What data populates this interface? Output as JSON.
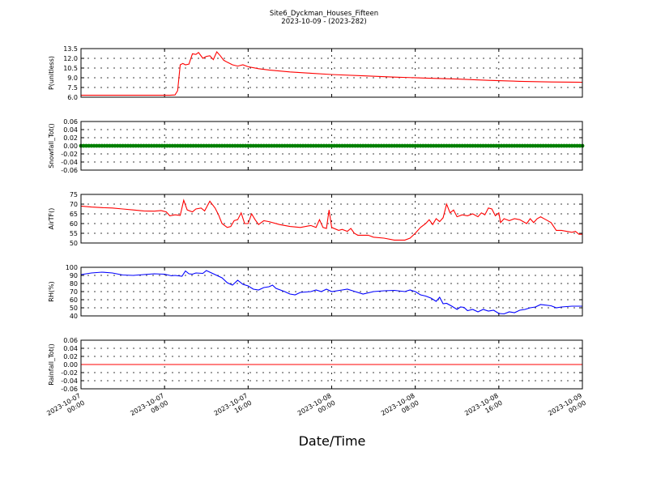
{
  "chart_data": {
    "title": "Site6_Dyckman_Houses_Fifteen",
    "subtitle": "2023-10-09 - (2023-282)",
    "xlabel": "Date/Time",
    "xlim": [
      "2023-10-07 00:00",
      "2023-10-09 00:00"
    ],
    "x_ticks": [
      {
        "time": "2023-10-07 00:00",
        "line1": "2023-10-07",
        "line2": "00:00"
      },
      {
        "time": "2023-10-07 08:00",
        "line1": "2023-10-07",
        "line2": "08:00"
      },
      {
        "time": "2023-10-07 16:00",
        "line1": "2023-10-07",
        "line2": "16:00"
      },
      {
        "time": "2023-10-08 00:00",
        "line1": "2023-10-08",
        "line2": "00:00"
      },
      {
        "time": "2023-10-08 08:00",
        "line1": "2023-10-08",
        "line2": "08:00"
      },
      {
        "time": "2023-10-08 16:00",
        "line1": "2023-10-08",
        "line2": "16:00"
      },
      {
        "time": "2023-10-09 00:00",
        "line1": "2023-10-09",
        "line2": "00:00"
      }
    ],
    "grid": true,
    "panels": [
      {
        "type": "line",
        "ylabel": "P(unitless)",
        "ylim": [
          6.0,
          13.5
        ],
        "yticks": [
          "13.5",
          "12.0",
          "10.5",
          "9.0",
          "7.5",
          "6.0"
        ],
        "color": "#ff0000",
        "points": [
          [
            "2023-10-07 00:00",
            6.3
          ],
          [
            "2023-10-07 04:00",
            6.3
          ],
          [
            "2023-10-07 08:30",
            6.3
          ],
          [
            "2023-10-07 09:00",
            6.35
          ],
          [
            "2023-10-07 09:15",
            7.0
          ],
          [
            "2023-10-07 09:30",
            11.0
          ],
          [
            "2023-10-07 09:45",
            11.2
          ],
          [
            "2023-10-07 10:00",
            11.0
          ],
          [
            "2023-10-07 10:20",
            11.1
          ],
          [
            "2023-10-07 10:40",
            12.7
          ],
          [
            "2023-10-07 11:00",
            12.6
          ],
          [
            "2023-10-07 11:15",
            12.9
          ],
          [
            "2023-10-07 11:40",
            12.0
          ],
          [
            "2023-10-07 12:00",
            12.3
          ],
          [
            "2023-10-07 12:20",
            12.4
          ],
          [
            "2023-10-07 12:40",
            11.8
          ],
          [
            "2023-10-07 13:00",
            13.0
          ],
          [
            "2023-10-07 13:20",
            12.4
          ],
          [
            "2023-10-07 13:40",
            11.7
          ],
          [
            "2023-10-07 14:00",
            11.4
          ],
          [
            "2023-10-07 14:30",
            11.0
          ],
          [
            "2023-10-07 15:00",
            10.8
          ],
          [
            "2023-10-07 15:30",
            11.0
          ],
          [
            "2023-10-07 16:00",
            10.7
          ],
          [
            "2023-10-07 17:00",
            10.4
          ],
          [
            "2023-10-07 18:00",
            10.2
          ],
          [
            "2023-10-07 20:00",
            9.9
          ],
          [
            "2023-10-07 22:00",
            9.7
          ],
          [
            "2023-10-08 00:00",
            9.5
          ],
          [
            "2023-10-08 03:00",
            9.3
          ],
          [
            "2023-10-08 06:00",
            9.1
          ],
          [
            "2023-10-08 09:00",
            8.95
          ],
          [
            "2023-10-08 12:00",
            8.8
          ],
          [
            "2023-10-08 15:00",
            8.6
          ],
          [
            "2023-10-08 18:00",
            8.45
          ],
          [
            "2023-10-08 21:00",
            8.35
          ],
          [
            "2023-10-09 00:00",
            8.3
          ]
        ]
      },
      {
        "type": "scatter",
        "ylabel": "Snowfall_Tot()",
        "ylim": [
          -0.06,
          0.06
        ],
        "yticks": [
          "0.06",
          "0.04",
          "0.02",
          "0.00",
          "-0.02",
          "-0.04",
          "-0.06"
        ],
        "color": "#008000",
        "constant_value": 0.0,
        "interval_minutes": 15
      },
      {
        "type": "line",
        "ylabel": "AirTF()",
        "ylim": [
          50,
          75
        ],
        "yticks": [
          "75",
          "70",
          "65",
          "60",
          "55",
          "50"
        ],
        "color": "#ff0000",
        "points": [
          [
            "2023-10-07 00:00",
            69.0
          ],
          [
            "2023-10-07 01:00",
            68.5
          ],
          [
            "2023-10-07 02:00",
            68.2
          ],
          [
            "2023-10-07 03:00",
            68.0
          ],
          [
            "2023-10-07 04:00",
            67.5
          ],
          [
            "2023-10-07 05:00",
            67.0
          ],
          [
            "2023-10-07 06:00",
            66.5
          ],
          [
            "2023-10-07 07:00",
            66.4
          ],
          [
            "2023-10-07 07:40",
            66.7
          ],
          [
            "2023-10-07 08:10",
            66.0
          ],
          [
            "2023-10-07 08:30",
            64.0
          ],
          [
            "2023-10-07 09:00",
            64.5
          ],
          [
            "2023-10-07 09:30",
            64.2
          ],
          [
            "2023-10-07 09:50",
            72.0
          ],
          [
            "2023-10-07 10:10",
            67.0
          ],
          [
            "2023-10-07 10:40",
            66.0
          ],
          [
            "2023-10-07 11:00",
            67.5
          ],
          [
            "2023-10-07 11:30",
            68.0
          ],
          [
            "2023-10-07 11:50",
            66.5
          ],
          [
            "2023-10-07 12:20",
            71.5
          ],
          [
            "2023-10-07 12:50",
            68.0
          ],
          [
            "2023-10-07 13:10",
            64.5
          ],
          [
            "2023-10-07 13:30",
            60.0
          ],
          [
            "2023-10-07 14:00",
            58.0
          ],
          [
            "2023-10-07 14:20",
            58.5
          ],
          [
            "2023-10-07 14:40",
            61.5
          ],
          [
            "2023-10-07 15:00",
            62.0
          ],
          [
            "2023-10-07 15:20",
            65.5
          ],
          [
            "2023-10-07 15:40",
            60.0
          ],
          [
            "2023-10-07 16:00",
            60.0
          ],
          [
            "2023-10-07 16:20",
            65.0
          ],
          [
            "2023-10-07 16:40",
            62.0
          ],
          [
            "2023-10-07 17:00",
            59.5
          ],
          [
            "2023-10-07 17:30",
            61.5
          ],
          [
            "2023-10-07 18:00",
            61.0
          ],
          [
            "2023-10-07 19:00",
            59.5
          ],
          [
            "2023-10-07 20:00",
            58.5
          ],
          [
            "2023-10-07 21:00",
            58.0
          ],
          [
            "2023-10-07 22:00",
            59.0
          ],
          [
            "2023-10-07 22:30",
            58.0
          ],
          [
            "2023-10-07 22:50",
            62.0
          ],
          [
            "2023-10-07 23:10",
            58.0
          ],
          [
            "2023-10-07 23:30",
            57.5
          ],
          [
            "2023-10-07 23:45",
            67.0
          ],
          [
            "2023-10-08 00:00",
            58.0
          ],
          [
            "2023-10-08 00:40",
            56.5
          ],
          [
            "2023-10-08 01:00",
            57.0
          ],
          [
            "2023-10-08 01:30",
            56.0
          ],
          [
            "2023-10-08 01:50",
            57.5
          ],
          [
            "2023-10-08 02:10",
            55.0
          ],
          [
            "2023-10-08 02:30",
            54.0
          ],
          [
            "2023-10-08 03:30",
            54.0
          ],
          [
            "2023-10-08 04:00",
            53.0
          ],
          [
            "2023-10-08 05:00",
            52.5
          ],
          [
            "2023-10-08 06:00",
            51.5
          ],
          [
            "2023-10-08 07:00",
            51.5
          ],
          [
            "2023-10-08 07:30",
            52.5
          ],
          [
            "2023-10-08 08:00",
            55.0
          ],
          [
            "2023-10-08 08:30",
            58.0
          ],
          [
            "2023-10-08 09:00",
            60.0
          ],
          [
            "2023-10-08 09:20",
            62.0
          ],
          [
            "2023-10-08 09:40",
            59.5
          ],
          [
            "2023-10-08 10:00",
            62.5
          ],
          [
            "2023-10-08 10:20",
            61.0
          ],
          [
            "2023-10-08 10:40",
            63.0
          ],
          [
            "2023-10-08 11:00",
            70.0
          ],
          [
            "2023-10-08 11:20",
            65.5
          ],
          [
            "2023-10-08 11:40",
            67.0
          ],
          [
            "2023-10-08 12:00",
            63.5
          ],
          [
            "2023-10-08 12:30",
            64.5
          ],
          [
            "2023-10-08 13:00",
            64.0
          ],
          [
            "2023-10-08 13:30",
            65.0
          ],
          [
            "2023-10-08 14:00",
            63.5
          ],
          [
            "2023-10-08 14:20",
            65.5
          ],
          [
            "2023-10-08 14:40",
            64.5
          ],
          [
            "2023-10-08 15:00",
            68.0
          ],
          [
            "2023-10-08 15:20",
            67.5
          ],
          [
            "2023-10-08 15:40",
            64.0
          ],
          [
            "2023-10-08 16:00",
            65.5
          ],
          [
            "2023-10-08 16:10",
            60.5
          ],
          [
            "2023-10-08 16:30",
            62.5
          ],
          [
            "2023-10-08 17:00",
            61.5
          ],
          [
            "2023-10-08 17:30",
            62.5
          ],
          [
            "2023-10-08 18:00",
            62.0
          ],
          [
            "2023-10-08 18:40",
            60.0
          ],
          [
            "2023-10-08 19:00",
            62.5
          ],
          [
            "2023-10-08 19:20",
            60.5
          ],
          [
            "2023-10-08 19:40",
            62.5
          ],
          [
            "2023-10-08 20:00",
            63.5
          ],
          [
            "2023-10-08 20:30",
            62.0
          ],
          [
            "2023-10-08 21:00",
            60.5
          ],
          [
            "2023-10-08 21:30",
            56.5
          ],
          [
            "2023-10-08 22:00",
            56.5
          ],
          [
            "2023-10-08 23:00",
            55.5
          ],
          [
            "2023-10-08 23:20",
            56.0
          ],
          [
            "2023-10-08 23:40",
            54.5
          ],
          [
            "2023-10-09 00:00",
            54.5
          ]
        ]
      },
      {
        "type": "line",
        "ylabel": "RH(%)",
        "ylim": [
          40,
          100
        ],
        "yticks": [
          "100",
          "90",
          "80",
          "70",
          "60",
          "50",
          "40"
        ],
        "color": "#0000ff",
        "points": [
          [
            "2023-10-07 00:00",
            91.0
          ],
          [
            "2023-10-07 01:00",
            93.0
          ],
          [
            "2023-10-07 02:00",
            94.0
          ],
          [
            "2023-10-07 03:00",
            93.0
          ],
          [
            "2023-10-07 04:00",
            90.5
          ],
          [
            "2023-10-07 05:00",
            90.0
          ],
          [
            "2023-10-07 06:00",
            91.0
          ],
          [
            "2023-10-07 07:00",
            92.0
          ],
          [
            "2023-10-07 08:00",
            91.5
          ],
          [
            "2023-10-07 08:40",
            89.5
          ],
          [
            "2023-10-07 09:00",
            90.0
          ],
          [
            "2023-10-07 09:40",
            89.0
          ],
          [
            "2023-10-07 10:00",
            95.5
          ],
          [
            "2023-10-07 10:20",
            92.0
          ],
          [
            "2023-10-07 10:40",
            91.5
          ],
          [
            "2023-10-07 11:00",
            93.0
          ],
          [
            "2023-10-07 11:40",
            92.5
          ],
          [
            "2023-10-07 12:00",
            96.0
          ],
          [
            "2023-10-07 12:30",
            93.0
          ],
          [
            "2023-10-07 13:00",
            90.0
          ],
          [
            "2023-10-07 13:30",
            87.0
          ],
          [
            "2023-10-07 14:00",
            81.0
          ],
          [
            "2023-10-07 14:30",
            78.0
          ],
          [
            "2023-10-07 15:00",
            84.0
          ],
          [
            "2023-10-07 15:30",
            79.0
          ],
          [
            "2023-10-07 16:00",
            77.0
          ],
          [
            "2023-10-07 16:30",
            73.0
          ],
          [
            "2023-10-07 17:00",
            72.0
          ],
          [
            "2023-10-07 17:30",
            75.0
          ],
          [
            "2023-10-07 18:00",
            76.0
          ],
          [
            "2023-10-07 18:20",
            78.0
          ],
          [
            "2023-10-07 18:40",
            74.0
          ],
          [
            "2023-10-07 19:30",
            70.0
          ],
          [
            "2023-10-07 20:00",
            67.0
          ],
          [
            "2023-10-07 20:30",
            66.0
          ],
          [
            "2023-10-07 21:00",
            69.0
          ],
          [
            "2023-10-07 22:00",
            70.0
          ],
          [
            "2023-10-07 22:30",
            72.0
          ],
          [
            "2023-10-07 23:00",
            70.0
          ],
          [
            "2023-10-07 23:30",
            73.0
          ],
          [
            "2023-10-08 00:00",
            70.0
          ],
          [
            "2023-10-08 01:00",
            72.0
          ],
          [
            "2023-10-08 01:30",
            73.0
          ],
          [
            "2023-10-08 02:00",
            71.0
          ],
          [
            "2023-10-08 03:00",
            67.0
          ],
          [
            "2023-10-08 04:00",
            70.0
          ],
          [
            "2023-10-08 05:00",
            71.0
          ],
          [
            "2023-10-08 06:00",
            71.5
          ],
          [
            "2023-10-08 07:00",
            70.0
          ],
          [
            "2023-10-08 07:30",
            72.0
          ],
          [
            "2023-10-08 08:00",
            70.0
          ],
          [
            "2023-10-08 08:30",
            66.0
          ],
          [
            "2023-10-08 09:00",
            64.5
          ],
          [
            "2023-10-08 09:30",
            62.0
          ],
          [
            "2023-10-08 10:00",
            58.0
          ],
          [
            "2023-10-08 10:20",
            63.0
          ],
          [
            "2023-10-08 10:40",
            55.0
          ],
          [
            "2023-10-08 11:00",
            55.5
          ],
          [
            "2023-10-08 11:30",
            52.0
          ],
          [
            "2023-10-08 12:00",
            48.0
          ],
          [
            "2023-10-08 12:20",
            51.0
          ],
          [
            "2023-10-08 12:40",
            50.5
          ],
          [
            "2023-10-08 13:00",
            46.5
          ],
          [
            "2023-10-08 13:30",
            48.0
          ],
          [
            "2023-10-08 14:00",
            45.0
          ],
          [
            "2023-10-08 14:30",
            48.0
          ],
          [
            "2023-10-08 15:00",
            46.0
          ],
          [
            "2023-10-08 15:30",
            47.0
          ],
          [
            "2023-10-08 16:00",
            43.0
          ],
          [
            "2023-10-08 16:30",
            42.5
          ],
          [
            "2023-10-08 17:00",
            45.0
          ],
          [
            "2023-10-08 17:30",
            44.0
          ],
          [
            "2023-10-08 18:00",
            47.0
          ],
          [
            "2023-10-08 18:30",
            48.0
          ],
          [
            "2023-10-08 19:00",
            50.0
          ],
          [
            "2023-10-08 19:30",
            51.0
          ],
          [
            "2023-10-08 20:00",
            54.0
          ],
          [
            "2023-10-08 21:00",
            52.5
          ],
          [
            "2023-10-08 21:30",
            50.0
          ],
          [
            "2023-10-08 22:00",
            51.0
          ],
          [
            "2023-10-08 23:00",
            52.0
          ],
          [
            "2023-10-09 00:00",
            52.0
          ]
        ]
      },
      {
        "type": "line",
        "ylabel": "Rainfall_Tot()",
        "ylim": [
          -0.06,
          0.06
        ],
        "yticks": [
          "0.06",
          "0.04",
          "0.02",
          "0.00",
          "-0.02",
          "-0.04",
          "-0.06"
        ],
        "color": "#ff0000",
        "points": [
          [
            "2023-10-07 00:00",
            0.0
          ],
          [
            "2023-10-09 00:00",
            0.0
          ]
        ]
      }
    ]
  }
}
